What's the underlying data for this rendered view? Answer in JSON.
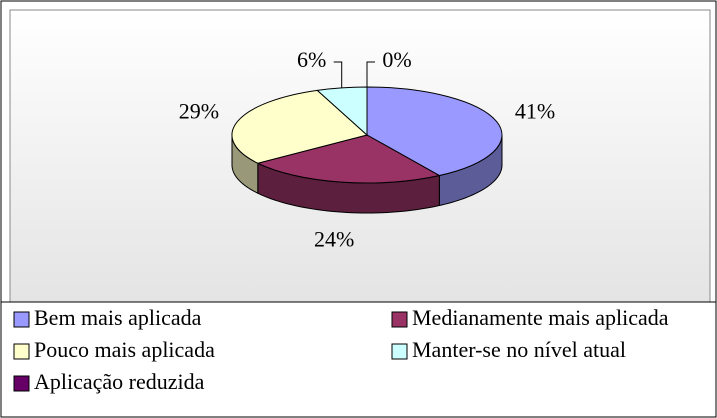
{
  "chart_data": {
    "type": "pie3d",
    "categories": [
      "Bem mais aplicada",
      "Medianamente mais aplicada",
      "Pouco mais aplicada",
      "Manter-se no nível atual",
      "Aplicação reduzida"
    ],
    "values": [
      41,
      24,
      29,
      6,
      0
    ],
    "value_labels": [
      "41%",
      "24%",
      "29%",
      "6%",
      "0%"
    ],
    "colors": [
      "#9999ff",
      "#993366",
      "#ffffcc",
      "#ccffff",
      "#660066"
    ],
    "legend": "bottom"
  }
}
